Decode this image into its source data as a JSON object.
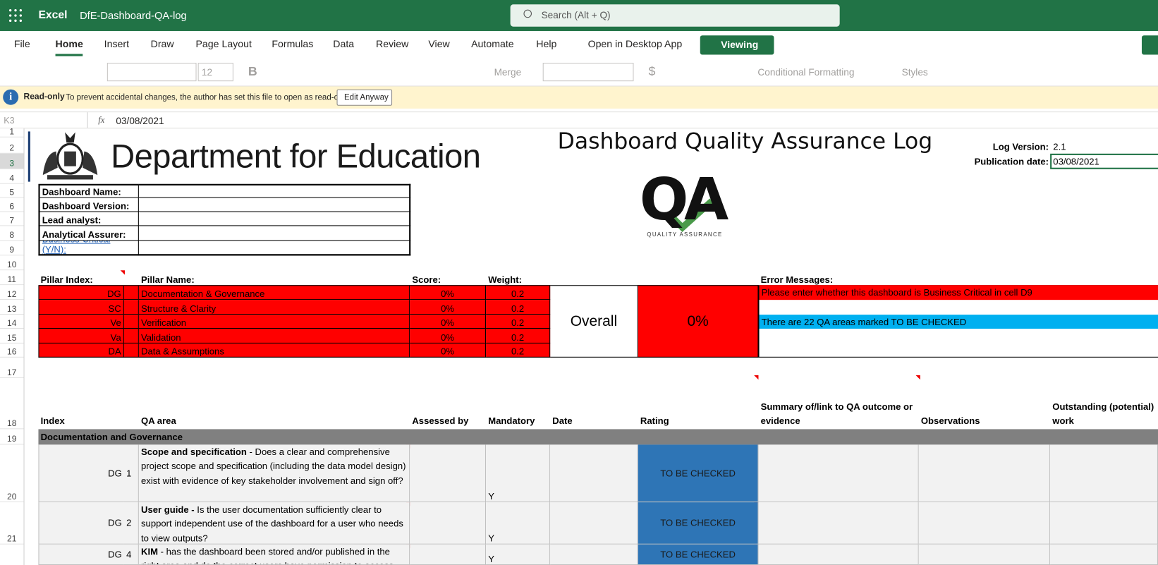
{
  "app": {
    "name": "Excel",
    "file": "DfE-Dashboard-QA-log",
    "search": "Search (Alt + Q)"
  },
  "menu": [
    "File",
    "Home",
    "Insert",
    "Draw",
    "Page Layout",
    "Formulas",
    "Data",
    "Review",
    "View",
    "Automate",
    "Help",
    "Open in Desktop App"
  ],
  "viewing": "Viewing",
  "toolbar": {
    "font_size": "12",
    "bold": "B",
    "merge": "Merge",
    "currency": "$",
    "conditional": "Conditional Formatting",
    "styles": "Styles"
  },
  "notice": {
    "label": "Read-only",
    "text": "To prevent accidental changes, the author has set this file to open as read-only",
    "button": "Edit Anyway"
  },
  "formula_bar": {
    "cell": "K3",
    "fx": "fx",
    "value": "03/08/2021"
  },
  "row_numbers": [
    "1",
    "2",
    "3",
    "4",
    "5",
    "6",
    "7",
    "8",
    "9",
    "10",
    "11",
    "12",
    "13",
    "14",
    "15",
    "16",
    "17",
    "18",
    "19",
    "20",
    "21"
  ],
  "sheet": {
    "logo_text": "Department for Education",
    "title": "Dashboard Quality Assurance Log",
    "log_version_label": "Log Version:",
    "log_version": "2.1",
    "publication_label": "Publication date:",
    "publication_date": "03/08/2021",
    "qa_logo": "QA",
    "qa_logo_caption": "QUALITY ASSURANCE",
    "info_table": [
      "Dashboard Name:",
      "Dashboard Version:",
      "Lead analyst:",
      "Analytical Assurer:",
      "Business Critical (Y/N):"
    ],
    "pillar_headers": [
      "Pillar Index:",
      "Pillar Name:",
      "Score:",
      "Weight:"
    ],
    "pillars": [
      [
        "DG",
        "Documentation & Governance",
        "0%",
        "0.2"
      ],
      [
        "SC",
        "Structure & Clarity",
        "0%",
        "0.2"
      ],
      [
        "Ve",
        "Verification",
        "0%",
        "0.2"
      ],
      [
        "Va",
        "Validation",
        "0%",
        "0.2"
      ],
      [
        "DA",
        "Data & Assumptions",
        "0%",
        "0.2"
      ]
    ],
    "overall_label": "Overall",
    "overall_score": "0%",
    "error_header": "Error Messages:",
    "errors": [
      "Please enter whether this dashboard is Business Critical in cell D9",
      "There are 22 QA areas marked TO BE CHECKED"
    ],
    "qa_headers": [
      "Index",
      "QA area",
      "Assessed by",
      "Mandatory",
      "Date",
      "Rating",
      "Summary of/link to QA outcome or evidence",
      "Observations",
      "Outstanding (potential) work"
    ],
    "section": "Documentation and Governance",
    "items": [
      {
        "index": "DG",
        "number": "1",
        "title": "Scope and specification",
        "text": " - Does a clear and comprehensive project scope and specification (including the data model design) exist with evidence of key stakeholder involvement and sign off?",
        "mandatory": "Y",
        "rating": "TO BE CHECKED"
      },
      {
        "index": "DG",
        "number": "2",
        "title": "User guide -",
        "text": " Is the user documentation sufficiently clear to support independent use of the dashboard for a user who needs to view outputs?",
        "mandatory": "Y",
        "rating": "TO BE CHECKED"
      },
      {
        "index": "DG",
        "number": "4",
        "title": "KIM",
        "text": " - has the dashboard been stored and/or published in the right area and do the correct users have permission to access",
        "mandatory": "Y",
        "rating": "TO BE CHECKED"
      }
    ]
  }
}
